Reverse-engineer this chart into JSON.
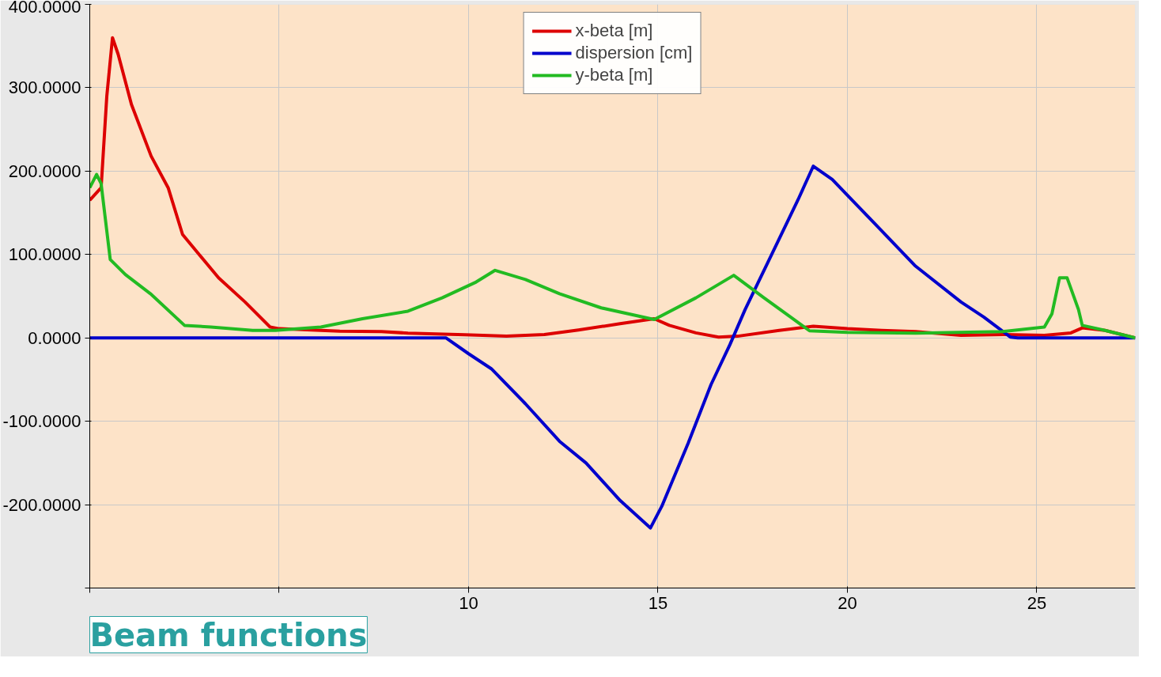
{
  "chart_data": {
    "type": "line",
    "title": "Beam functions",
    "xlim": [
      0,
      27.6
    ],
    "ylim": [
      -300,
      400
    ],
    "xticks": [
      {
        "value": 0,
        "label": null
      },
      {
        "value": 5,
        "label": null
      },
      10,
      15,
      20,
      25
    ],
    "yticks": [
      {
        "value": -300,
        "label": null
      },
      {
        "value": -200,
        "label": "-200.0000"
      },
      {
        "value": -100,
        "label": "-100.0000"
      },
      {
        "value": 0,
        "label": "0.0000"
      },
      {
        "value": 100,
        "label": "100.0000"
      },
      {
        "value": 200,
        "label": "200.0000"
      },
      {
        "value": 300,
        "label": "300.0000"
      },
      {
        "value": 400,
        "label": "400.0000"
      }
    ],
    "grid": true,
    "legend": "top",
    "marker": "none",
    "line_style": "solid",
    "series": [
      {
        "name": "x-beta [m]",
        "color": "#dd0000",
        "x": [
          0,
          0.3,
          0.45,
          0.6,
          0.75,
          1.1,
          1.62,
          2.07,
          2.45,
          3.4,
          4.1,
          4.76,
          5,
          6.1,
          6.6,
          7.7,
          8.4,
          9.9,
          11,
          12,
          12.9,
          14,
          14.9,
          15.3,
          16,
          16.6,
          17.1,
          18.2,
          19.1,
          20,
          20.9,
          21.8,
          23,
          24.1,
          25.2,
          25.9,
          26.2,
          26.8,
          27.6
        ],
        "values": [
          165,
          180,
          290,
          360,
          340,
          280,
          218,
          180,
          124,
          72,
          43,
          13,
          11,
          9,
          8,
          7.5,
          5.7,
          3.8,
          2,
          4,
          9.4,
          17,
          23,
          15,
          6,
          1,
          2,
          9,
          14,
          11,
          9,
          7.5,
          3,
          4,
          3,
          6,
          12,
          9,
          0
        ]
      },
      {
        "name": "dispersion [cm]",
        "color": "#0000cc",
        "x": [
          0,
          9.4,
          10,
          10.6,
          11.5,
          12.4,
          13.1,
          14,
          14.8,
          15.1,
          15.8,
          16.4,
          16.9,
          17.3,
          18,
          18.7,
          19.1,
          19.6,
          20.7,
          21.8,
          23,
          23.6,
          24.3,
          24.5,
          27.6
        ],
        "values": [
          0,
          0,
          -19,
          -37,
          -79,
          -124,
          -150,
          -195,
          -228,
          -202,
          -126,
          -56,
          -8,
          34,
          100,
          166,
          206,
          190,
          138,
          86,
          43,
          25,
          1,
          0,
          0
        ]
      },
      {
        "name": "y-beta [m]",
        "color": "#22bb22",
        "x": [
          0,
          0.18,
          0.3,
          0.4,
          0.54,
          0.94,
          1.6,
          2.5,
          3.2,
          4.3,
          4.9,
          6.1,
          7.2,
          8.4,
          9.3,
          10.2,
          10.7,
          11.5,
          12.4,
          13.5,
          14.9,
          16,
          17,
          17.8,
          18.5,
          19,
          20,
          21.8,
          24.1,
          25.2,
          25.4,
          25.6,
          25.8,
          26.1,
          26.2,
          26.8,
          27.6
        ],
        "values": [
          180,
          196,
          185,
          147,
          94,
          76,
          53,
          15,
          13,
          9,
          9,
          13,
          23,
          32,
          48,
          67,
          81,
          70,
          53,
          36,
          22,
          48,
          75,
          48,
          25,
          8.5,
          6.6,
          5.7,
          7.5,
          13,
          29,
          72,
          72,
          34,
          15,
          9,
          0
        ]
      }
    ]
  }
}
